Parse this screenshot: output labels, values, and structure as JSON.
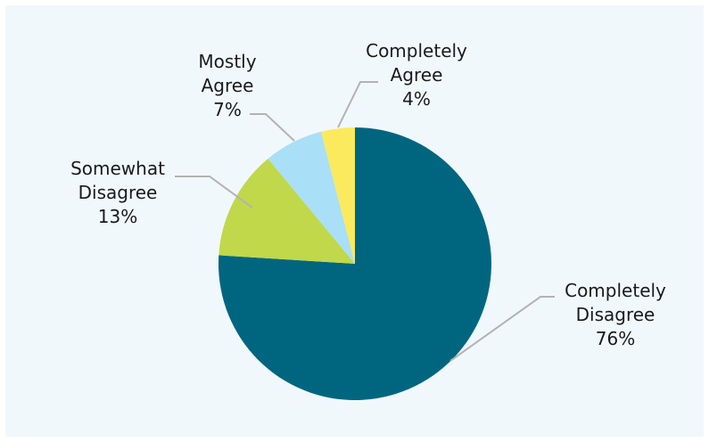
{
  "chart_data": {
    "type": "pie",
    "title": "",
    "legend": "none",
    "slices": [
      {
        "label_lines": [
          "Completely",
          "Disagree",
          "76%"
        ],
        "name": "Completely Disagree",
        "value": 76,
        "color": "#006680"
      },
      {
        "label_lines": [
          "Somewhat",
          "Disagree",
          "13%"
        ],
        "name": "Somewhat Disagree",
        "value": 13,
        "color": "#c0d84a"
      },
      {
        "label_lines": [
          "Mostly",
          "Agree",
          "7%"
        ],
        "name": "Mostly Agree",
        "value": 7,
        "color": "#a9dff7"
      },
      {
        "label_lines": [
          "Completely",
          "Agree",
          "4%"
        ],
        "name": "Completely Agree",
        "value": 4,
        "color": "#fbea5e"
      }
    ],
    "background": "#f1f8fc",
    "leader_line_color": "#b3b3b3"
  }
}
